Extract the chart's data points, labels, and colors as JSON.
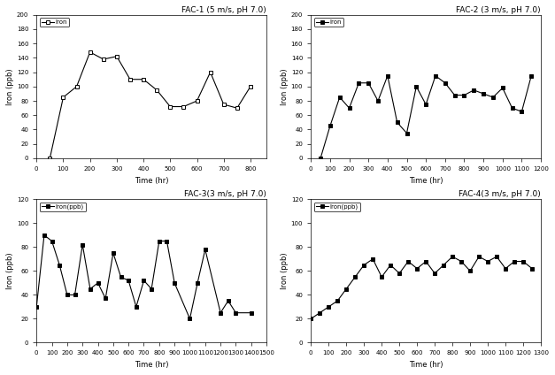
{
  "fac1": {
    "title": "FAC-1 (5 m/s, pH 7.0)",
    "xlabel": "Time (hr)",
    "ylabel": "Iron (ppb)",
    "xlim": [
      0,
      860
    ],
    "ylim": [
      0,
      200
    ],
    "xticks": [
      0,
      100,
      200,
      300,
      400,
      500,
      600,
      700,
      800
    ],
    "yticks": [
      0,
      20,
      40,
      60,
      80,
      100,
      120,
      140,
      160,
      180,
      200
    ],
    "time": [
      50,
      100,
      150,
      200,
      250,
      300,
      350,
      400,
      450,
      500,
      550,
      600,
      650,
      700,
      750,
      800
    ],
    "iron": [
      0,
      85,
      100,
      148,
      138,
      142,
      110,
      110,
      95,
      72,
      72,
      80,
      120,
      75,
      70,
      100
    ],
    "open_marker": true,
    "legend": "Iron"
  },
  "fac2": {
    "title": "FAC-2 (3 m/s, pH 7.0)",
    "xlabel": "Time (hr)",
    "ylabel": "Iron (ppb)",
    "xlim": [
      0,
      1200
    ],
    "ylim": [
      0,
      200
    ],
    "xticks": [
      0,
      100,
      200,
      300,
      400,
      500,
      600,
      700,
      800,
      900,
      1000,
      1100,
      1200
    ],
    "yticks": [
      0,
      20,
      40,
      60,
      80,
      100,
      120,
      140,
      160,
      180,
      200
    ],
    "time": [
      50,
      100,
      150,
      200,
      250,
      300,
      350,
      400,
      450,
      500,
      550,
      600,
      650,
      700,
      750,
      800,
      850,
      900,
      950,
      1000,
      1050,
      1100,
      1150
    ],
    "iron": [
      0,
      45,
      85,
      70,
      105,
      105,
      80,
      115,
      50,
      35,
      100,
      75,
      115,
      105,
      88,
      88,
      95,
      90,
      85,
      98,
      70,
      65,
      115
    ],
    "open_marker": false,
    "legend": "Iron"
  },
  "fac3": {
    "title": "FAC-3(3 m/s, pH 7.0)",
    "xlabel": "Time (hr)",
    "ylabel": "Iron (ppb)",
    "xlim": [
      0,
      1500
    ],
    "ylim": [
      0,
      120
    ],
    "xticks": [
      0,
      100,
      200,
      300,
      400,
      500,
      600,
      700,
      800,
      900,
      1000,
      1100,
      1200,
      1300,
      1400,
      1500
    ],
    "yticks": [
      0,
      20,
      40,
      60,
      80,
      100,
      120
    ],
    "time": [
      0,
      50,
      100,
      150,
      200,
      250,
      300,
      350,
      400,
      450,
      500,
      550,
      600,
      650,
      700,
      750,
      800,
      850,
      900,
      1000,
      1050,
      1100,
      1200,
      1250,
      1300,
      1400
    ],
    "iron": [
      30,
      90,
      85,
      65,
      40,
      40,
      82,
      45,
      50,
      37,
      75,
      55,
      52,
      30,
      52,
      45,
      85,
      85,
      50,
      20,
      50,
      78,
      25,
      35,
      25,
      25
    ],
    "open_marker": false,
    "legend": "Iron(ppb)"
  },
  "fac4": {
    "title": "FAC-4(3 m/s, pH 7.0)",
    "xlabel": "Time (hr)",
    "ylabel": "Iron (ppb)",
    "xlim": [
      0,
      1300
    ],
    "ylim": [
      0,
      120
    ],
    "xticks": [
      0,
      100,
      200,
      300,
      400,
      500,
      600,
      700,
      800,
      900,
      1000,
      1100,
      1200,
      1300
    ],
    "yticks": [
      0,
      20,
      40,
      60,
      80,
      100,
      120
    ],
    "time": [
      0,
      50,
      100,
      150,
      200,
      250,
      300,
      350,
      400,
      450,
      500,
      550,
      600,
      650,
      700,
      750,
      800,
      850,
      900,
      950,
      1000,
      1050,
      1100,
      1150,
      1200,
      1250
    ],
    "iron": [
      20,
      25,
      30,
      35,
      45,
      55,
      65,
      70,
      55,
      65,
      58,
      68,
      62,
      68,
      58,
      65,
      72,
      68,
      60,
      72,
      68,
      72,
      62,
      68,
      68,
      62
    ],
    "open_marker": false,
    "legend": "Iron(ppb)"
  },
  "line_color": "#000000"
}
